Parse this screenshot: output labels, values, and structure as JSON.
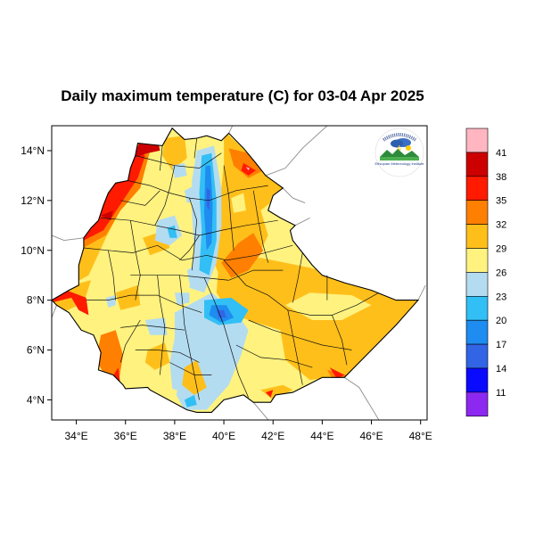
{
  "map": {
    "title": "Daily maximum temperature (C) for 03-04 Apr 2025",
    "lon_ticks": [
      {
        "value": 34,
        "label": "34°E"
      },
      {
        "value": 36,
        "label": "36°E"
      },
      {
        "value": 38,
        "label": "38°E"
      },
      {
        "value": 40,
        "label": "40°E"
      },
      {
        "value": 42,
        "label": "42°E"
      },
      {
        "value": 44,
        "label": "44°E"
      },
      {
        "value": 46,
        "label": "46°E"
      },
      {
        "value": 48,
        "label": "48°E"
      }
    ],
    "lat_ticks": [
      {
        "value": 14,
        "label": "14°N"
      },
      {
        "value": 12,
        "label": "12°N"
      },
      {
        "value": 10,
        "label": "10°N"
      },
      {
        "value": 8,
        "label": "8°N"
      },
      {
        "value": 6,
        "label": "6°N"
      },
      {
        "value": 4,
        "label": "4°N"
      }
    ],
    "extent": {
      "lon": [
        33.0,
        48.2
      ],
      "lat": [
        3.2,
        15.0
      ]
    }
  },
  "colorbar": {
    "colors": [
      "#ffb6c1",
      "#cc0000",
      "#ff1a00",
      "#ff7f00",
      "#ffbf1a",
      "#fff27f",
      "#b4dcf0",
      "#32bff5",
      "#1e8cf0",
      "#3264e6",
      "#0a0aff",
      "#8c28f0"
    ],
    "labels": [
      "41",
      "38",
      "35",
      "32",
      "29",
      "26",
      "23",
      "20",
      "17",
      "14",
      "11"
    ]
  },
  "logo": {
    "agency_amharic": "የኢትዮጵያ ሜቲዎሮሎጂ ኢንስቲትዩት",
    "agency_english": "Ethiopian Meteorology Institute"
  }
}
